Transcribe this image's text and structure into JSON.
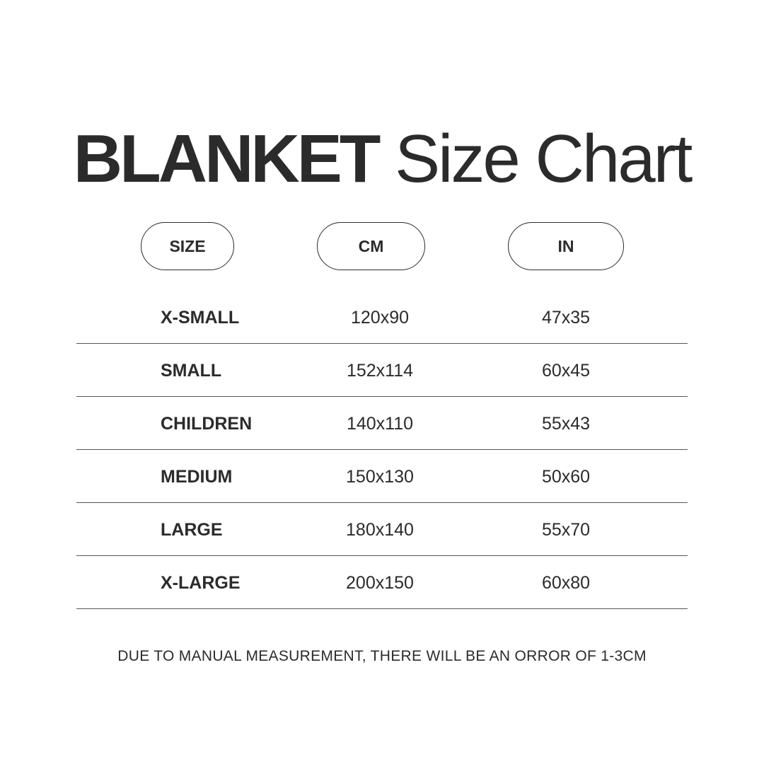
{
  "title": {
    "bold": "BLANKET",
    "regular": "Size Chart"
  },
  "headers": [
    "SIZE",
    "CM",
    "IN"
  ],
  "rows": [
    [
      "X-SMALL",
      "120x90",
      "47x35"
    ],
    [
      "SMALL",
      "152x114",
      "60x45"
    ],
    [
      "CHILDREN",
      "140x110",
      "55x43"
    ],
    [
      "MEDIUM",
      "150x130",
      "50x60"
    ],
    [
      "LARGE",
      "180x140",
      "55x70"
    ],
    [
      "X-LARGE",
      "200x150",
      "60x80"
    ]
  ],
  "footnote": "DUE TO MANUAL MEASUREMENT, THERE WILL BE AN ORROR OF 1-3CM"
}
